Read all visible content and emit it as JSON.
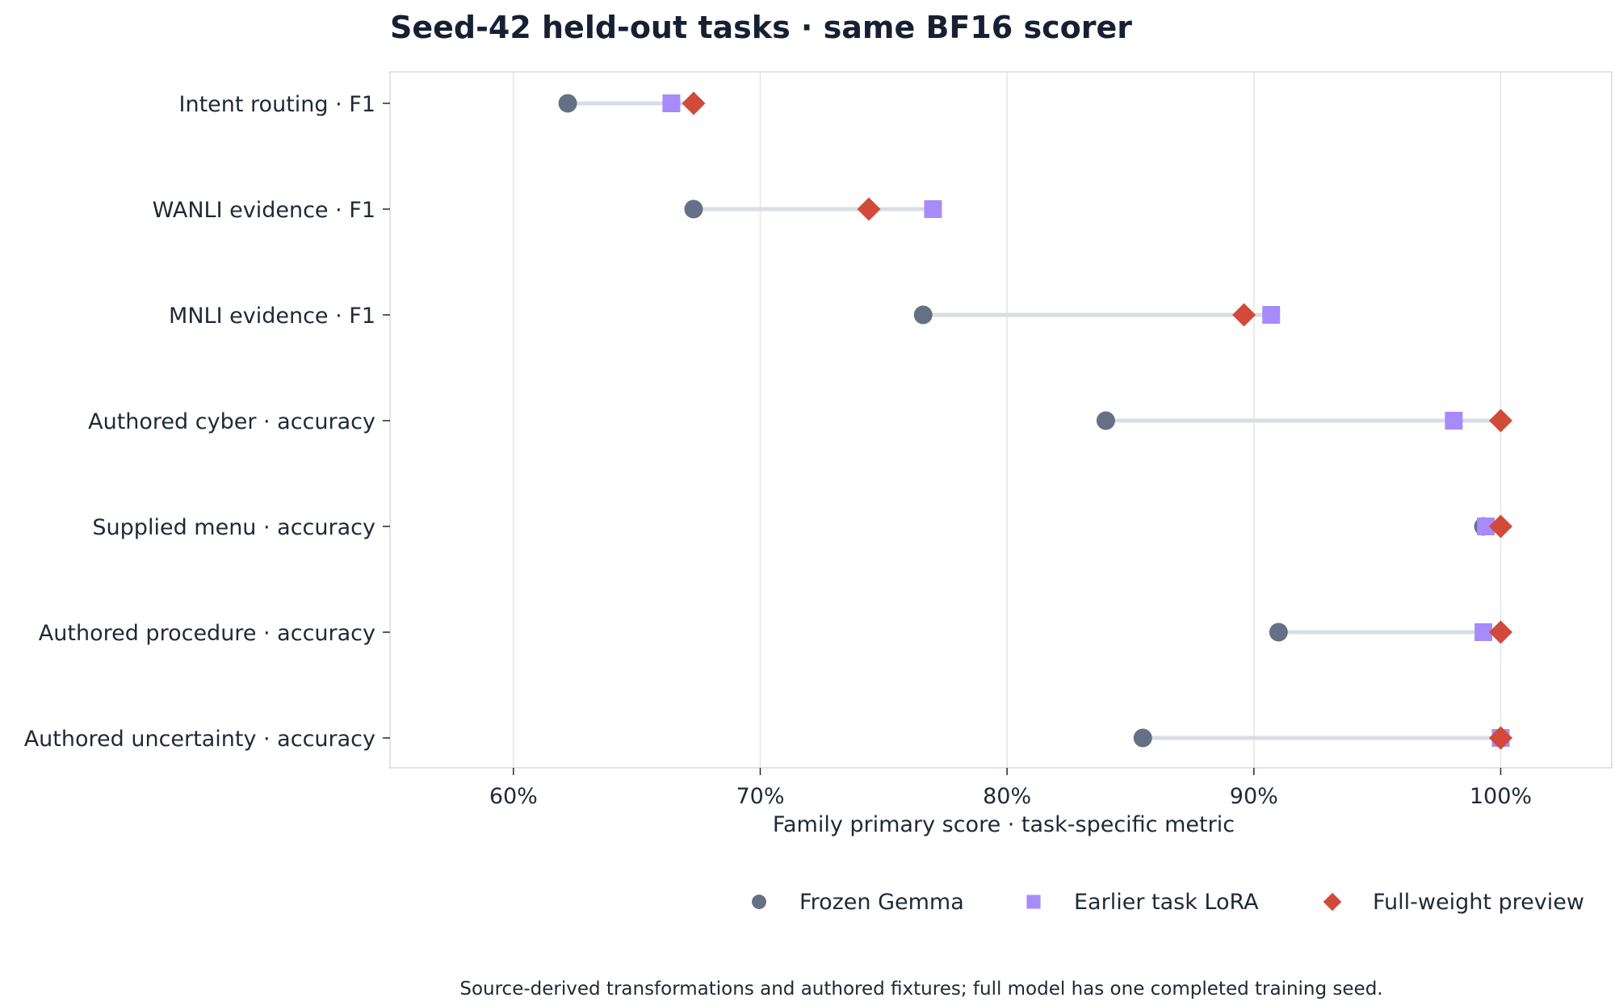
{
  "chart_data": {
    "type": "dumbbell",
    "title": "Seed-42 held-out tasks · same BF16 scorer",
    "xlabel": "Family primary score · task-specific metric",
    "ylabel": "",
    "xlim": [
      55,
      104.5
    ],
    "xticks": [
      60,
      70,
      80,
      90,
      100
    ],
    "tick_suffix": "%",
    "grid": "vertical",
    "legend_position": "bottom-right",
    "caption": "Source-derived transformations and authored fixtures; full model has one completed training seed.",
    "categories": [
      "Intent routing · F1",
      "WANLI evidence · F1",
      "MNLI evidence · F1",
      "Authored cyber · accuracy",
      "Supplied menu · accuracy",
      "Authored procedure · accuracy",
      "Authored uncertainty · accuracy"
    ],
    "series": [
      {
        "name": "Frozen Gemma",
        "marker": "circle",
        "color": "#667085",
        "values": [
          62.2,
          67.3,
          76.6,
          84.0,
          99.3,
          91.0,
          85.5
        ]
      },
      {
        "name": "Earlier task LoRA",
        "marker": "square",
        "color": "#a78bfa",
        "values": [
          66.4,
          77.0,
          90.7,
          98.1,
          99.4,
          99.3,
          100.0
        ]
      },
      {
        "name": "Full-weight preview",
        "marker": "diamond",
        "color": "#d14a3a",
        "values": [
          67.3,
          74.4,
          89.6,
          100.0,
          100.0,
          100.0,
          100.0
        ]
      }
    ],
    "connector_color": "#d9dee6"
  }
}
